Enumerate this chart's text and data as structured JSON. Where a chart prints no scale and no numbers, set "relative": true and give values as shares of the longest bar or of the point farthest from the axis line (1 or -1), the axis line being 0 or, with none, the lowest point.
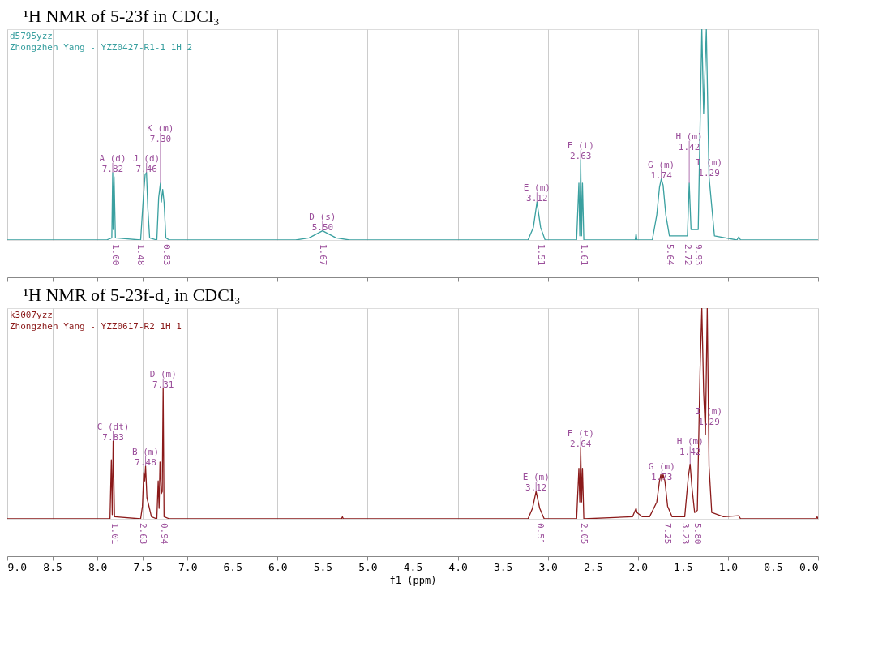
{
  "chart_data": [
    {
      "type": "line",
      "title": "¹H NMR of 5-23f in CDCl₃",
      "relative": true,
      "xlim": [
        9.0,
        0.0
      ],
      "xticks": [
        9,
        8.5,
        8,
        7.5,
        7,
        6.5,
        6,
        5.5,
        5,
        4.5,
        4,
        3.5,
        3,
        2.5,
        2,
        1.5,
        1,
        0.5,
        0
      ],
      "grid": "x",
      "tick_labels": false,
      "line_style": "solid",
      "marker": "none",
      "series": [
        {
          "color": "#3aa0a0",
          "x": [
            9.0,
            7.9,
            7.84,
            7.83,
            7.825,
            7.815,
            7.8,
            7.52,
            7.49,
            7.47,
            7.455,
            7.44,
            7.42,
            7.34,
            7.32,
            7.3,
            7.29,
            7.275,
            7.26,
            7.24,
            7.2,
            5.8,
            5.65,
            5.5,
            5.35,
            5.2,
            3.22,
            3.16,
            3.12,
            3.08,
            3.03,
            2.68,
            2.655,
            2.645,
            2.635,
            2.625,
            2.615,
            2.6,
            2.03,
            2.02,
            2.01,
            1.84,
            1.79,
            1.76,
            1.74,
            1.72,
            1.69,
            1.65,
            1.45,
            1.43,
            1.41,
            1.33,
            1.29,
            1.27,
            1.24,
            1.21,
            1.15,
            0.9,
            0.88,
            0.86,
            0.0
          ],
          "values": [
            0,
            0,
            0.01,
            0.32,
            0.05,
            0.3,
            0.01,
            0,
            0.2,
            0.31,
            0.32,
            0.15,
            0.01,
            0,
            0.2,
            0.27,
            0.18,
            0.24,
            0.18,
            0.01,
            0,
            0,
            0.01,
            0.044,
            0.01,
            0,
            0,
            0.06,
            0.18,
            0.06,
            0,
            0,
            0.27,
            0.02,
            0.38,
            0.02,
            0.27,
            0,
            0,
            0.03,
            0,
            0,
            0.12,
            0.25,
            0.29,
            0.26,
            0.12,
            0.02,
            0.02,
            0.27,
            0.05,
            0.05,
            1.0,
            0.6,
            1.0,
            0.3,
            0.02,
            0,
            0.015,
            0,
            0
          ]
        }
      ],
      "annotations": [
        "d5795yzz",
        "Zhongzhen Yang - YZZ0427-R1-1 1H 2",
        {
          "text": "A (d)\n7.82",
          "x": 7.83,
          "y": 0.32
        },
        {
          "text": "J (d)\n7.46",
          "x": 7.455,
          "y": 0.32
        },
        {
          "text": "K (m)\n7.30",
          "x": 7.3,
          "y": 0.27
        },
        {
          "text": "D (s)\n5.50",
          "x": 5.5,
          "y": 0.044
        },
        {
          "text": "E (m)\n3.12",
          "x": 3.12,
          "y": 0.18
        },
        {
          "text": "F (t)\n2.63",
          "x": 2.635,
          "y": 0.38
        },
        {
          "text": "G (m)\n1.74",
          "x": 1.74,
          "y": 0.29
        },
        {
          "text": "H (m)\n1.42",
          "x": 1.43,
          "y": 0.27
        },
        {
          "text": "I (m)\n1.29",
          "x": 1.21,
          "y": 0.3
        },
        {
          "text": "1.00",
          "x": 7.8,
          "y": 0.01
        },
        {
          "text": "1.48",
          "x": 7.52,
          "y": 0
        },
        {
          "text": "0.83",
          "x": 7.24,
          "y": 0.01
        },
        {
          "text": "1.67",
          "x": 5.5,
          "y": 0.044
        },
        {
          "text": "1.51",
          "x": 3.08,
          "y": 0.06
        },
        {
          "text": "1.61",
          "x": 2.6,
          "y": 0
        },
        {
          "text": "5.64",
          "x": 1.65,
          "y": 0.02
        },
        {
          "text": "2.72",
          "x": 1.45,
          "y": 0.02
        },
        {
          "text": "9.93",
          "x": 1.33,
          "y": 0.05
        }
      ]
    },
    {
      "type": "line",
      "title": "¹H NMR of 5-23f-d₂ in CDCl₃",
      "relative": true,
      "xlabel": "f1 (ppm)",
      "xlim": [
        9.0,
        0.0
      ],
      "xticks": [
        {
          "value": 9,
          "label": "9.0"
        },
        8.5,
        {
          "value": 8,
          "label": "8.0"
        },
        7.5,
        {
          "value": 7,
          "label": "7.0"
        },
        6.5,
        {
          "value": 6,
          "label": "6.0"
        },
        5.5,
        {
          "value": 5,
          "label": "5.0"
        },
        4.5,
        {
          "value": 4,
          "label": "4.0"
        },
        3.5,
        {
          "value": 3,
          "label": "3.0"
        },
        2.5,
        {
          "value": 2,
          "label": "2.0"
        },
        1.5,
        {
          "value": 1,
          "label": "1.0"
        },
        0.5,
        {
          "value": 0,
          "label": "0.0"
        }
      ],
      "grid": "x",
      "tick_labels": "x",
      "line_style": "solid",
      "marker": "none",
      "series": [
        {
          "color": "#8b1a1a",
          "x": [
            9.0,
            7.86,
            7.845,
            7.835,
            7.825,
            7.81,
            7.52,
            7.5,
            7.485,
            7.475,
            7.465,
            7.45,
            7.4,
            7.34,
            7.325,
            7.315,
            7.305,
            7.29,
            7.28,
            7.27,
            7.26,
            7.2,
            5.29,
            5.28,
            5.27,
            3.22,
            3.17,
            3.13,
            3.09,
            3.04,
            2.68,
            2.655,
            2.645,
            2.635,
            2.625,
            2.615,
            2.6,
            2.06,
            2.02,
            2.01,
            1.95,
            1.87,
            1.79,
            1.76,
            1.745,
            1.735,
            1.72,
            1.7,
            1.67,
            1.62,
            1.48,
            1.44,
            1.42,
            1.4,
            1.37,
            1.34,
            1.31,
            1.29,
            1.27,
            1.25,
            1.23,
            1.21,
            1.18,
            1.05,
            0.88,
            0.86,
            0.02,
            0.01,
            0.0
          ],
          "values": [
            0,
            0,
            0.28,
            0.02,
            0.37,
            0.01,
            0,
            0.06,
            0.22,
            0.18,
            0.25,
            0.1,
            0.01,
            0,
            0.18,
            0.05,
            0.27,
            0.12,
            0.13,
            0.62,
            0.01,
            0,
            0,
            0.01,
            0,
            0,
            0.05,
            0.13,
            0.05,
            0,
            0,
            0.24,
            0.08,
            0.34,
            0.08,
            0.24,
            0,
            0.01,
            0.05,
            0.03,
            0.01,
            0.01,
            0.08,
            0.18,
            0.21,
            0.18,
            0.21,
            0.18,
            0.06,
            0.01,
            0.01,
            0.2,
            0.26,
            0.15,
            0.03,
            0.04,
            0.7,
            1.0,
            0.6,
            0.4,
            1.0,
            0.25,
            0.03,
            0.01,
            0.015,
            0,
            0,
            0.01,
            0
          ]
        }
      ],
      "annotations": [
        "k3007yzz",
        "Zhongzhen Yang - YZZ0617-R2 1H 1",
        {
          "text": "C (dt)\n7.83",
          "x": 7.825,
          "y": 0.37
        },
        {
          "text": "D (m)\n7.31",
          "x": 7.27,
          "y": 0.62
        },
        {
          "text": "B (m)\n7.48",
          "x": 7.465,
          "y": 0.25
        },
        {
          "text": "E (m)\n3.12",
          "x": 3.13,
          "y": 0.13
        },
        {
          "text": "F (t)\n2.64",
          "x": 2.635,
          "y": 0.34
        },
        {
          "text": "G (m)\n1.73",
          "x": 1.735,
          "y": 0.18
        },
        {
          "text": "H (m)\n1.42",
          "x": 1.42,
          "y": 0.26
        },
        {
          "text": "I (m)\n1.29",
          "x": 1.21,
          "y": 0.25
        },
        {
          "text": "1.01",
          "x": 7.81,
          "y": 0.01
        },
        {
          "text": "2.63",
          "x": 7.5,
          "y": 0.06
        },
        {
          "text": "0.94",
          "x": 7.26,
          "y": 0.01
        },
        {
          "text": "0.51",
          "x": 3.09,
          "y": 0.05
        },
        {
          "text": "2.05",
          "x": 2.6,
          "y": 0
        },
        {
          "text": "7.25",
          "x": 1.67,
          "y": 0.06
        },
        {
          "text": "3.23",
          "x": 1.48,
          "y": 0.01
        },
        {
          "text": "5.80",
          "x": 1.34,
          "y": 0.04
        }
      ]
    }
  ]
}
